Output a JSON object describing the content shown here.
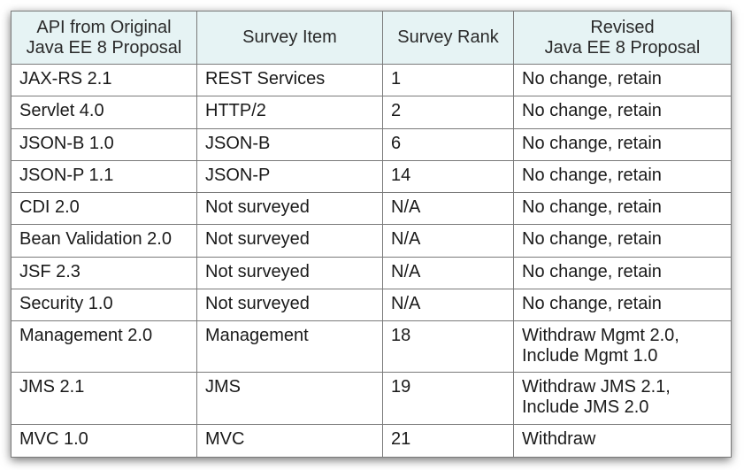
{
  "table": {
    "headers": [
      "API from Original\nJava EE 8 Proposal",
      "Survey Item",
      "Survey Rank",
      "Revised\nJava EE 8 Proposal"
    ],
    "rows": [
      [
        "JAX-RS 2.1",
        "REST Services",
        "1",
        "No change, retain"
      ],
      [
        "Servlet 4.0",
        "HTTP/2",
        "2",
        "No change, retain"
      ],
      [
        "JSON-B 1.0",
        "JSON-B",
        "6",
        "No change, retain"
      ],
      [
        "JSON-P 1.1",
        "JSON-P",
        "14",
        "No change, retain"
      ],
      [
        "CDI 2.0",
        "Not surveyed",
        "N/A",
        "No change, retain"
      ],
      [
        "Bean Validation 2.0",
        "Not surveyed",
        "N/A",
        "No change, retain"
      ],
      [
        "JSF 2.3",
        "Not surveyed",
        "N/A",
        "No change, retain"
      ],
      [
        "Security 1.0",
        "Not surveyed",
        "N/A",
        "No change, retain"
      ],
      [
        "Management 2.0",
        "Management",
        "18",
        "Withdraw Mgmt 2.0,\nInclude Mgmt 1.0"
      ],
      [
        "JMS 2.1",
        "JMS",
        "19",
        "Withdraw JMS 2.1,\nInclude JMS 2.0"
      ],
      [
        "MVC 1.0",
        "MVC",
        "21",
        "Withdraw"
      ]
    ]
  },
  "colors": {
    "header_bg": "#e6f3f4",
    "border": "#7a7a7a",
    "text": "#1a1a1a"
  }
}
